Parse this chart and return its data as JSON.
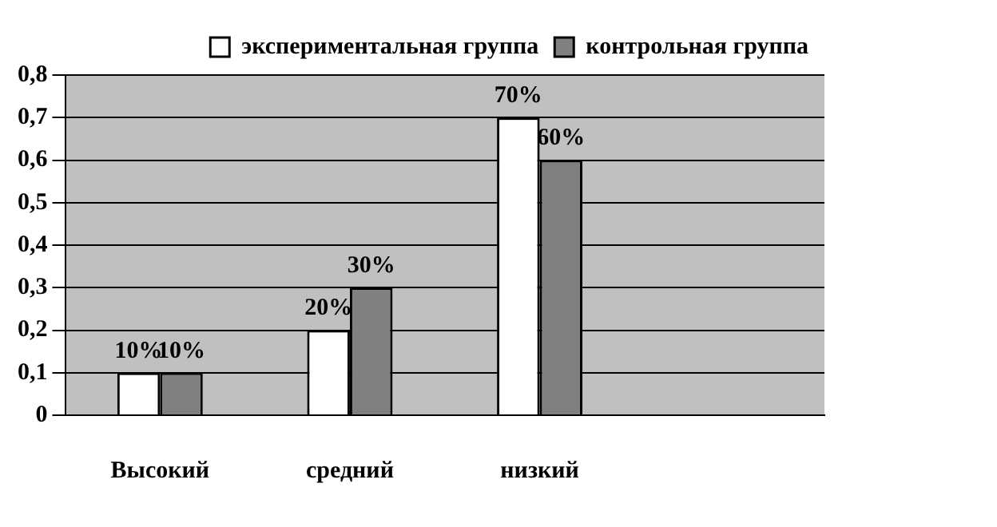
{
  "chart_data": {
    "type": "bar",
    "categories": [
      "Высокий",
      "средний",
      "низкий",
      null
    ],
    "series": [
      {
        "name": "экспериментальная группа",
        "color": "#ffffff",
        "values": [
          0.1,
          0.2,
          0.7,
          null
        ],
        "value_labels": [
          "10%",
          "20%",
          "70%",
          null
        ]
      },
      {
        "name": "контрольная группа",
        "color": "#808080",
        "values": [
          0.1,
          0.3,
          0.6,
          null
        ],
        "value_labels": [
          "10%",
          "30%",
          "60%",
          null
        ]
      }
    ],
    "ylim": [
      0,
      0.8
    ],
    "yticks": [
      {
        "value": 0,
        "label": "0"
      },
      {
        "value": 0.1,
        "label": "0,1"
      },
      {
        "value": 0.2,
        "label": "0,2"
      },
      {
        "value": 0.3,
        "label": "0,3"
      },
      {
        "value": 0.4,
        "label": "0,4"
      },
      {
        "value": 0.5,
        "label": "0,5"
      },
      {
        "value": 0.6,
        "label": "0,6"
      },
      {
        "value": 0.7,
        "label": "0,7"
      },
      {
        "value": 0.8,
        "label": "0,8"
      }
    ],
    "grid": "y",
    "legend": "top"
  }
}
